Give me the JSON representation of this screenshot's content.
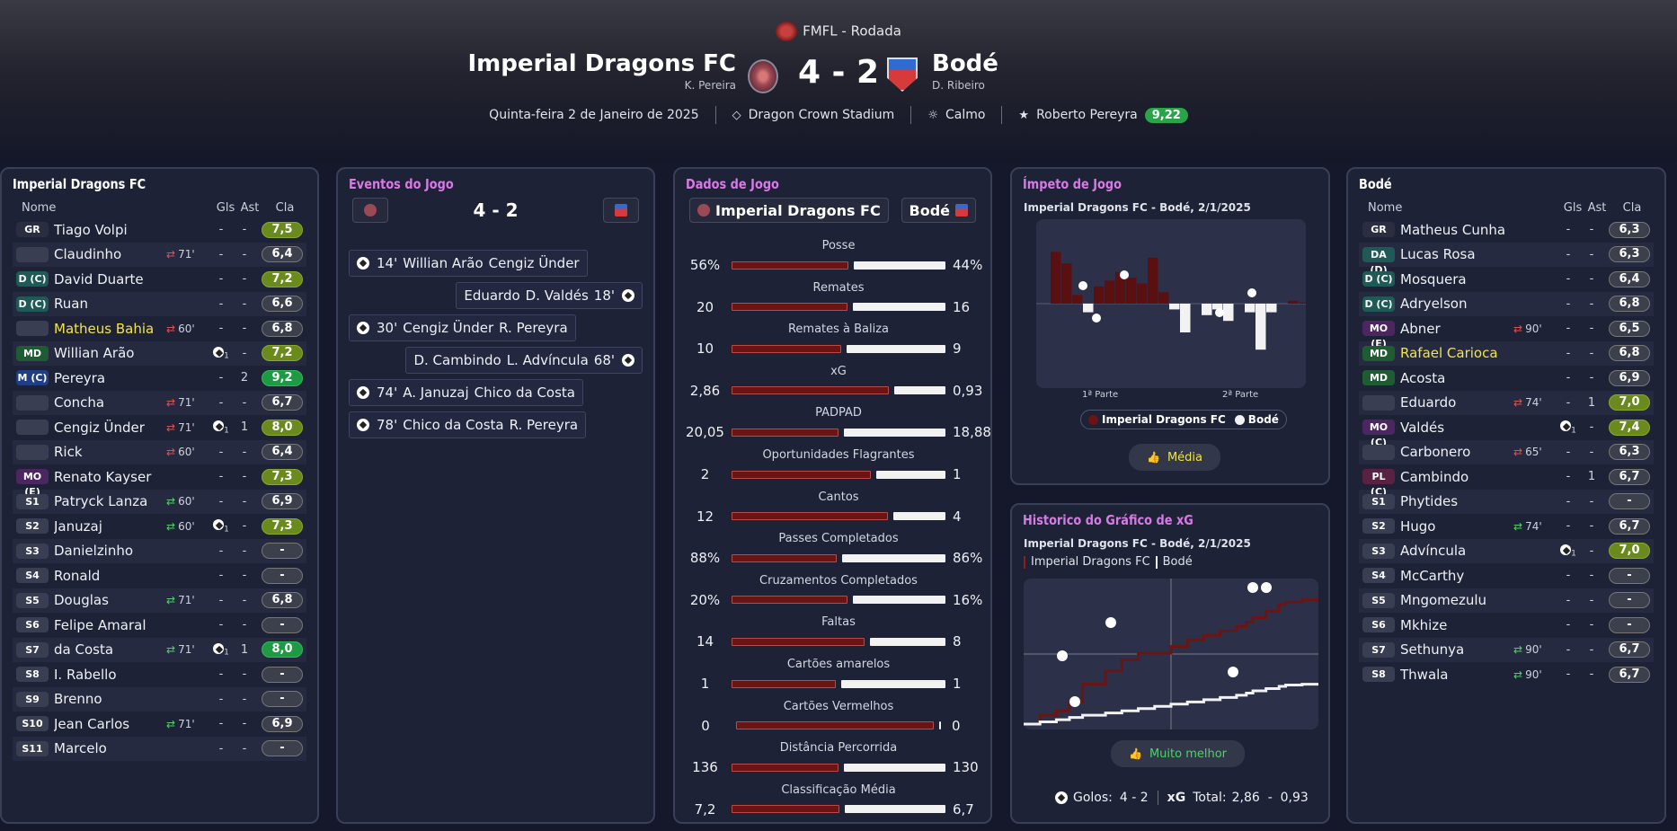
{
  "header": {
    "competition": "FMFL - Rodada",
    "home_team": "Imperial Dragons FC",
    "home_manager": "K. Pereira",
    "away_team": "Bodé",
    "away_manager": "D. Ribeiro",
    "score": "4 - 2",
    "date": "Quinta-feira 2 de Janeiro de 2025",
    "stadium": "Dragon Crown Stadium",
    "weather": "Calmo",
    "motm_name": "Roberto Pereyra",
    "motm_rating": "9,22"
  },
  "lineup_headers": {
    "name": "Nome",
    "goals": "Gls",
    "assists": "Ast",
    "rating": "Cla"
  },
  "home_lineup": {
    "title": "Imperial Dragons FC",
    "players": [
      {
        "pos": "GR",
        "name": "Tiago Volpi",
        "sub": "",
        "goal_icon": "",
        "gls": "-",
        "ast": "-",
        "rating": "7,5",
        "rcls": "g1"
      },
      {
        "pos": "",
        "name": "Claudinho",
        "sub": "71'",
        "sub_dir": "out",
        "goal_icon": "",
        "gls": "-",
        "ast": "-",
        "rating": "6,4",
        "rcls": ""
      },
      {
        "pos": "D (C)",
        "name": "David Duarte",
        "sub": "",
        "goal_icon": "",
        "gls": "-",
        "ast": "-",
        "rating": "7,2",
        "rcls": "g1"
      },
      {
        "pos": "D (C)",
        "name": "Ruan",
        "sub": "",
        "goal_icon": "",
        "gls": "-",
        "ast": "-",
        "rating": "6,6",
        "rcls": ""
      },
      {
        "pos": "",
        "name": "Matheus Bahia",
        "yellow": true,
        "sub": "60'",
        "sub_dir": "out",
        "goal_icon": "",
        "gls": "-",
        "ast": "-",
        "rating": "6,8",
        "rcls": ""
      },
      {
        "pos": "MD",
        "name": "Willian Arão",
        "sub": "",
        "goal_icon": "1",
        "gls": "",
        "ast": "-",
        "rating": "7,2",
        "rcls": "g1"
      },
      {
        "pos": "M (C)",
        "name": "Pereyra",
        "sub": "",
        "goal_icon": "",
        "gls": "-",
        "ast": "2",
        "rating": "9,2",
        "rcls": "g2"
      },
      {
        "pos": "",
        "name": "Concha",
        "sub": "71'",
        "sub_dir": "out",
        "goal_icon": "",
        "gls": "-",
        "ast": "-",
        "rating": "6,7",
        "rcls": ""
      },
      {
        "pos": "",
        "name": "Cengiz Ünder",
        "sub": "71'",
        "sub_dir": "out",
        "goal_icon": "1",
        "gls": "",
        "ast": "1",
        "rating": "8,0",
        "rcls": "g1"
      },
      {
        "pos": "",
        "name": "Rick",
        "sub": "60'",
        "sub_dir": "out",
        "goal_icon": "",
        "gls": "-",
        "ast": "-",
        "rating": "6,4",
        "rcls": ""
      },
      {
        "pos": "MO (E)",
        "name": "Renato Kayser",
        "sub": "",
        "goal_icon": "",
        "gls": "-",
        "ast": "-",
        "rating": "7,3",
        "rcls": "g1"
      },
      {
        "pos": "S1",
        "name": "Patryck Lanza",
        "sub": "60'",
        "sub_dir": "in",
        "goal_icon": "",
        "gls": "-",
        "ast": "-",
        "rating": "6,9",
        "rcls": ""
      },
      {
        "pos": "S2",
        "name": "Januzaj",
        "sub": "60'",
        "sub_dir": "in",
        "goal_icon": "1",
        "gls": "",
        "ast": "-",
        "rating": "7,3",
        "rcls": "g1"
      },
      {
        "pos": "S3",
        "name": "Danielzinho",
        "sub": "",
        "goal_icon": "",
        "gls": "-",
        "ast": "-",
        "rating": "-",
        "rcls": "dash"
      },
      {
        "pos": "S4",
        "name": "Ronald",
        "sub": "",
        "goal_icon": "",
        "gls": "-",
        "ast": "-",
        "rating": "-",
        "rcls": "dash"
      },
      {
        "pos": "S5",
        "name": "Douglas",
        "sub": "71'",
        "sub_dir": "in",
        "goal_icon": "",
        "gls": "-",
        "ast": "-",
        "rating": "6,8",
        "rcls": ""
      },
      {
        "pos": "S6",
        "name": "Felipe Amaral",
        "sub": "",
        "goal_icon": "",
        "gls": "-",
        "ast": "-",
        "rating": "-",
        "rcls": "dash"
      },
      {
        "pos": "S7",
        "name": "da Costa",
        "sub": "71'",
        "sub_dir": "in",
        "goal_icon": "1",
        "gls": "",
        "ast": "1",
        "rating": "8,0",
        "rcls": "g2"
      },
      {
        "pos": "S8",
        "name": "I. Rabello",
        "sub": "",
        "goal_icon": "",
        "gls": "-",
        "ast": "-",
        "rating": "-",
        "rcls": "dash"
      },
      {
        "pos": "S9",
        "name": "Brenno",
        "sub": "",
        "goal_icon": "",
        "gls": "-",
        "ast": "-",
        "rating": "-",
        "rcls": "dash"
      },
      {
        "pos": "S10",
        "name": "Jean Carlos",
        "sub": "71'",
        "sub_dir": "in",
        "goal_icon": "",
        "gls": "-",
        "ast": "-",
        "rating": "6,9",
        "rcls": ""
      },
      {
        "pos": "S11",
        "name": "Marcelo",
        "sub": "",
        "goal_icon": "",
        "gls": "-",
        "ast": "-",
        "rating": "-",
        "rcls": "dash"
      }
    ]
  },
  "away_lineup": {
    "title": "Bodé",
    "players": [
      {
        "pos": "GR",
        "name": "Matheus Cunha",
        "sub": "",
        "goal_icon": "",
        "gls": "-",
        "ast": "-",
        "rating": "6,3",
        "rcls": ""
      },
      {
        "pos": "DA (D)",
        "name": "Lucas Rosa",
        "sub": "",
        "goal_icon": "",
        "gls": "-",
        "ast": "-",
        "rating": "6,3",
        "rcls": ""
      },
      {
        "pos": "D (C)",
        "name": "Mosquera",
        "sub": "",
        "goal_icon": "",
        "gls": "-",
        "ast": "-",
        "rating": "6,4",
        "rcls": ""
      },
      {
        "pos": "D (C)",
        "name": "Adryelson",
        "sub": "",
        "goal_icon": "",
        "gls": "-",
        "ast": "-",
        "rating": "6,8",
        "rcls": ""
      },
      {
        "pos": "MO (E)",
        "name": "Abner",
        "sub": "90'",
        "sub_dir": "out",
        "goal_icon": "",
        "gls": "-",
        "ast": "-",
        "rating": "6,5",
        "rcls": ""
      },
      {
        "pos": "MD",
        "name": "Rafael Carioca",
        "yellow": true,
        "sub": "",
        "goal_icon": "",
        "gls": "-",
        "ast": "-",
        "rating": "6,8",
        "rcls": ""
      },
      {
        "pos": "MD",
        "name": "Acosta",
        "sub": "",
        "goal_icon": "",
        "gls": "-",
        "ast": "-",
        "rating": "6,9",
        "rcls": ""
      },
      {
        "pos": "",
        "name": "Eduardo",
        "sub": "74'",
        "sub_dir": "out",
        "goal_icon": "",
        "gls": "-",
        "ast": "1",
        "rating": "7,0",
        "rcls": "g1"
      },
      {
        "pos": "MO (C)",
        "name": "Valdés",
        "sub": "",
        "goal_icon": "1",
        "gls": "",
        "ast": "-",
        "rating": "7,4",
        "rcls": "g1"
      },
      {
        "pos": "",
        "name": "Carbonero",
        "sub": "65'",
        "sub_dir": "out",
        "goal_icon": "",
        "gls": "-",
        "ast": "-",
        "rating": "6,3",
        "rcls": ""
      },
      {
        "pos": "PL (C)",
        "name": "Cambindo",
        "sub": "",
        "goal_icon": "",
        "gls": "-",
        "ast": "1",
        "rating": "6,7",
        "rcls": ""
      },
      {
        "pos": "S1",
        "name": "Phytides",
        "sub": "",
        "goal_icon": "",
        "gls": "-",
        "ast": "-",
        "rating": "-",
        "rcls": "dash"
      },
      {
        "pos": "S2",
        "name": "Hugo",
        "sub": "74'",
        "sub_dir": "in",
        "goal_icon": "",
        "gls": "-",
        "ast": "-",
        "rating": "6,7",
        "rcls": ""
      },
      {
        "pos": "S3",
        "name": "Advíncula",
        "sub": "",
        "goal_icon": "1",
        "gls": "",
        "ast": "-",
        "rating": "7,0",
        "rcls": "g1"
      },
      {
        "pos": "S4",
        "name": "McCarthy",
        "sub": "",
        "goal_icon": "",
        "gls": "-",
        "ast": "-",
        "rating": "-",
        "rcls": "dash"
      },
      {
        "pos": "S5",
        "name": "Mngomezulu",
        "sub": "",
        "goal_icon": "",
        "gls": "-",
        "ast": "-",
        "rating": "-",
        "rcls": "dash"
      },
      {
        "pos": "S6",
        "name": "Mkhize",
        "sub": "",
        "goal_icon": "",
        "gls": "-",
        "ast": "-",
        "rating": "-",
        "rcls": "dash"
      },
      {
        "pos": "S7",
        "name": "Sethunya",
        "sub": "90'",
        "sub_dir": "in",
        "goal_icon": "",
        "gls": "-",
        "ast": "-",
        "rating": "6,7",
        "rcls": ""
      },
      {
        "pos": "S8",
        "name": "Thwala",
        "sub": "90'",
        "sub_dir": "in",
        "goal_icon": "",
        "gls": "-",
        "ast": "-",
        "rating": "6,7",
        "rcls": ""
      }
    ]
  },
  "events": {
    "title": "Eventos do Jogo",
    "score": "4 - 2",
    "items": [
      {
        "side": "home",
        "minute": "14'",
        "scorer": "Willian Arão",
        "assist": "Cengiz Ünder"
      },
      {
        "side": "away",
        "minute": "18'",
        "scorer": "D. Valdés",
        "assist": "Eduardo"
      },
      {
        "side": "home",
        "minute": "30'",
        "scorer": "Cengiz Ünder",
        "assist": "R. Pereyra"
      },
      {
        "side": "away",
        "minute": "68'",
        "scorer": "L. Advíncula",
        "assist": "D. Cambindo"
      },
      {
        "side": "home",
        "minute": "74'",
        "scorer": "A. Januzaj",
        "assist": "Chico da Costa"
      },
      {
        "side": "home",
        "minute": "78'",
        "scorer": "Chico da Costa",
        "assist": "R. Pereyra"
      }
    ]
  },
  "stats": {
    "title": "Dados de Jogo",
    "home": "Imperial Dragons FC",
    "away": "Bodé",
    "items": [
      {
        "label": "Posse",
        "home": "56%",
        "away": "44%",
        "hv": 56,
        "av": 44
      },
      {
        "label": "Remates",
        "home": "20",
        "away": "16",
        "hv": 20,
        "av": 16
      },
      {
        "label": "Remates à Baliza",
        "home": "10",
        "away": "9",
        "hv": 10,
        "av": 9
      },
      {
        "label": "xG",
        "home": "2,86",
        "away": "0,93",
        "hv": 2.86,
        "av": 0.93
      },
      {
        "label": "PADPAD",
        "home": "20,05",
        "away": "18,88",
        "hv": 20.05,
        "av": 18.88
      },
      {
        "label": "Oportunidades Flagrantes",
        "home": "2",
        "away": "1",
        "hv": 2,
        "av": 1
      },
      {
        "label": "Cantos",
        "home": "12",
        "away": "4",
        "hv": 12,
        "av": 4
      },
      {
        "label": "Passes Completados",
        "home": "88%",
        "away": "86%",
        "hv": 88,
        "av": 86
      },
      {
        "label": "Cruzamentos Completados",
        "home": "20%",
        "away": "16%",
        "hv": 20,
        "av": 16
      },
      {
        "label": "Faltas",
        "home": "14",
        "away": "8",
        "hv": 14,
        "av": 8
      },
      {
        "label": "Cartões amarelos",
        "home": "1",
        "away": "1",
        "hv": 1,
        "av": 1
      },
      {
        "label": "Cartões Vermelhos",
        "home": "0",
        "away": "0",
        "hv": 0,
        "av": 0
      },
      {
        "label": "Distância Percorrida",
        "home": "136",
        "away": "130",
        "hv": 136,
        "av": 130
      },
      {
        "label": "Classificação Média",
        "home": "7,2",
        "away": "6,7",
        "hv": 7.2,
        "av": 6.7
      }
    ]
  },
  "momentum": {
    "title": "Ímpeto de Jogo",
    "subtitle": "Imperial Dragons FC - Bodé, 2/1/2025",
    "half1": "1ª Parte",
    "half2": "2ª Parte",
    "legend_home": "Imperial Dragons FC",
    "legend_away": "Bodé",
    "verdict": "Média",
    "home_color": "#6b1414",
    "away_color": "#f2f2f2"
  },
  "xg_history": {
    "title": "Historico do Gráfico de xG",
    "subtitle": "Imperial Dragons FC - Bodé, 2/1/2025",
    "legend_home": "Imperial Dragons FC",
    "legend_away": "Bodé",
    "verdict": "Muito melhor",
    "goals_label": "Golos:",
    "goals": "4 - 2",
    "xg_label": "xG",
    "total_label": "Total:",
    "xg_total": "2,86  -  0,93"
  },
  "chart_data": [
    {
      "type": "bar",
      "title": "Ímpeto de Jogo",
      "series": [
        {
          "name": "Imperial Dragons FC",
          "values": [
            0.9,
            0.7,
            0.15,
            0,
            0.3,
            0.4,
            0.55,
            0.45,
            0.35,
            0.8,
            0.2,
            0,
            0,
            0,
            0,
            0,
            0,
            0,
            0,
            0,
            0,
            0,
            0.05,
            0.02
          ]
        },
        {
          "name": "Bodé",
          "values": [
            0,
            0,
            0,
            0.15,
            0,
            0,
            0,
            0,
            0,
            0,
            0,
            0.1,
            0.5,
            0,
            0.2,
            0.1,
            0.3,
            0,
            0.15,
            0.8,
            0.15,
            0,
            0,
            0
          ]
        }
      ],
      "xlabel": "",
      "ylabel": ""
    },
    {
      "type": "line",
      "title": "Historico do Gráfico de xG",
      "x": [
        0,
        5,
        10,
        14,
        18,
        25,
        30,
        35,
        40,
        45,
        50,
        55,
        60,
        65,
        68,
        70,
        74,
        78,
        80,
        85,
        90
      ],
      "series": [
        {
          "name": "Imperial Dragons FC",
          "values": [
            0,
            0.2,
            0.3,
            0.5,
            0.9,
            1.2,
            1.45,
            1.6,
            1.6,
            1.75,
            1.9,
            2.0,
            2.1,
            2.2,
            2.3,
            2.4,
            2.55,
            2.7,
            2.75,
            2.8,
            2.86
          ]
        },
        {
          "name": "Bodé",
          "values": [
            0,
            0.05,
            0.1,
            0.15,
            0.2,
            0.25,
            0.3,
            0.35,
            0.4,
            0.45,
            0.5,
            0.55,
            0.6,
            0.65,
            0.7,
            0.75,
            0.8,
            0.85,
            0.88,
            0.9,
            0.93
          ]
        }
      ]
    }
  ]
}
